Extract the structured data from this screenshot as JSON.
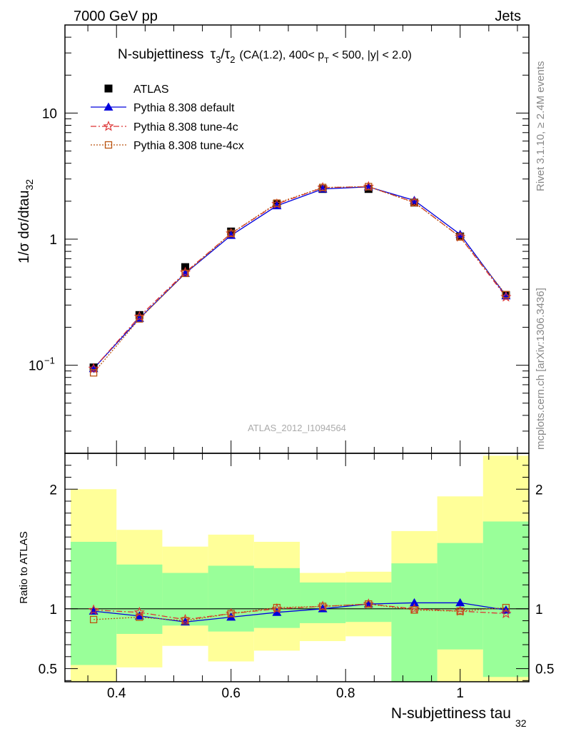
{
  "header": {
    "left": "7000 GeV pp",
    "right": "Jets",
    "side_top": "Rivet 3.1.10, ≥ 2.4M events",
    "side_bottom": "mcplots.cern.ch [arXiv:1306.3436]",
    "watermark": "ATLAS_2012_I1094564"
  },
  "title": {
    "prefix": "N-subjettiness",
    "tau": "τ",
    "sub3": "3",
    "slash": "/",
    "sub2": "2",
    "cuts_a": "(CA(1.2), 400< p",
    "cuts_sub": "T",
    "cuts_b": " < 500, |y| < 2.0)"
  },
  "colors": {
    "atlas": "#000000",
    "default": "#0000dd",
    "tune4c": "#dd3333",
    "tune4cx": "#bb5511",
    "band_outer": "#ffff99",
    "band_inner": "#99ff99"
  },
  "chart_data": {
    "type": "line",
    "title": "N-subjettiness τ3/τ2 (CA(1.2), 400< pT < 500, |y| < 2.0)",
    "xlabel": "N-subjettiness tau",
    "xlabel_sub": "32",
    "ylabel": "1/σ dσ/dtau",
    "ylabel_sub": "32",
    "ratio_ylabel": "Ratio to ATLAS",
    "xlim": [
      0.31,
      1.12
    ],
    "ylim": [
      0.02,
      50
    ],
    "yscale": "log",
    "ratio_ylim": [
      0.39,
      2.3
    ],
    "x_ticks": [
      0.4,
      0.6,
      0.8,
      1.0
    ],
    "x_tick_labels": [
      "0.4",
      "0.6",
      "0.8",
      "1"
    ],
    "y_ticks": [
      0.1,
      1,
      10
    ],
    "y_tick_labels": [
      {
        "base": "10",
        "exp": "−1"
      },
      {
        "base": "1",
        "exp": ""
      },
      {
        "base": "10",
        "exp": ""
      }
    ],
    "ratio_ticks": [
      0.5,
      1,
      2
    ],
    "ratio_tick_labels": [
      "0.5",
      "1",
      "2"
    ],
    "bin_edges": [
      0.32,
      0.4,
      0.48,
      0.56,
      0.64,
      0.72,
      0.8,
      0.88,
      0.96,
      1.04,
      1.12
    ],
    "x": [
      0.36,
      0.44,
      0.52,
      0.6,
      0.68,
      0.76,
      0.84,
      0.92,
      1.0,
      1.08
    ],
    "legend": [
      "ATLAS",
      "Pythia 8.308 default",
      "Pythia 8.308 tune-4c",
      "Pythia 8.308 tune-4cx"
    ],
    "series": [
      {
        "name": "ATLAS",
        "values": [
          0.096,
          0.25,
          0.6,
          1.15,
          1.9,
          2.5,
          2.5,
          1.95,
          1.05,
          0.36
        ]
      },
      {
        "name": "Pythia 8.308 default",
        "values": [
          0.094,
          0.235,
          0.535,
          1.07,
          1.84,
          2.5,
          2.6,
          2.03,
          1.09,
          0.355
        ]
      },
      {
        "name": "Pythia 8.308 tune-4c",
        "values": [
          0.094,
          0.243,
          0.545,
          1.11,
          1.9,
          2.56,
          2.61,
          1.96,
          1.04,
          0.348
        ]
      },
      {
        "name": "Pythia 8.308 tune-4cx",
        "values": [
          0.087,
          0.233,
          0.535,
          1.11,
          1.93,
          2.57,
          2.61,
          1.95,
          1.04,
          0.363
        ]
      }
    ],
    "ratio_series": [
      {
        "name": "Pythia 8.308 default",
        "values": [
          0.98,
          0.94,
          0.89,
          0.93,
          0.97,
          1.0,
          1.04,
          1.05,
          1.05,
          0.99
        ]
      },
      {
        "name": "Pythia 8.308 tune-4c",
        "values": [
          0.99,
          0.97,
          0.91,
          0.96,
          1.0,
          1.02,
          1.04,
          1.0,
          0.98,
          0.96
        ]
      },
      {
        "name": "Pythia 8.308 tune-4cx",
        "values": [
          0.91,
          0.93,
          0.9,
          0.96,
          1.01,
          1.02,
          1.04,
          0.99,
          0.98,
          1.01
        ]
      }
    ],
    "band_inner": [
      [
        0.53,
        1.56
      ],
      [
        0.79,
        1.37
      ],
      [
        0.86,
        1.3
      ],
      [
        0.81,
        1.36
      ],
      [
        0.84,
        1.34
      ],
      [
        0.88,
        1.22
      ],
      [
        0.89,
        1.22
      ],
      [
        0.37,
        1.38
      ],
      [
        0.66,
        1.55
      ],
      [
        0.43,
        1.73
      ]
    ],
    "band_outer": [
      [
        0.37,
        2.0
      ],
      [
        0.51,
        1.66
      ],
      [
        0.69,
        1.52
      ],
      [
        0.56,
        1.62
      ],
      [
        0.65,
        1.56
      ],
      [
        0.73,
        1.3
      ],
      [
        0.77,
        1.31
      ],
      [
        0.37,
        1.65
      ],
      [
        0.37,
        1.94
      ],
      [
        0.37,
        2.28
      ]
    ]
  }
}
